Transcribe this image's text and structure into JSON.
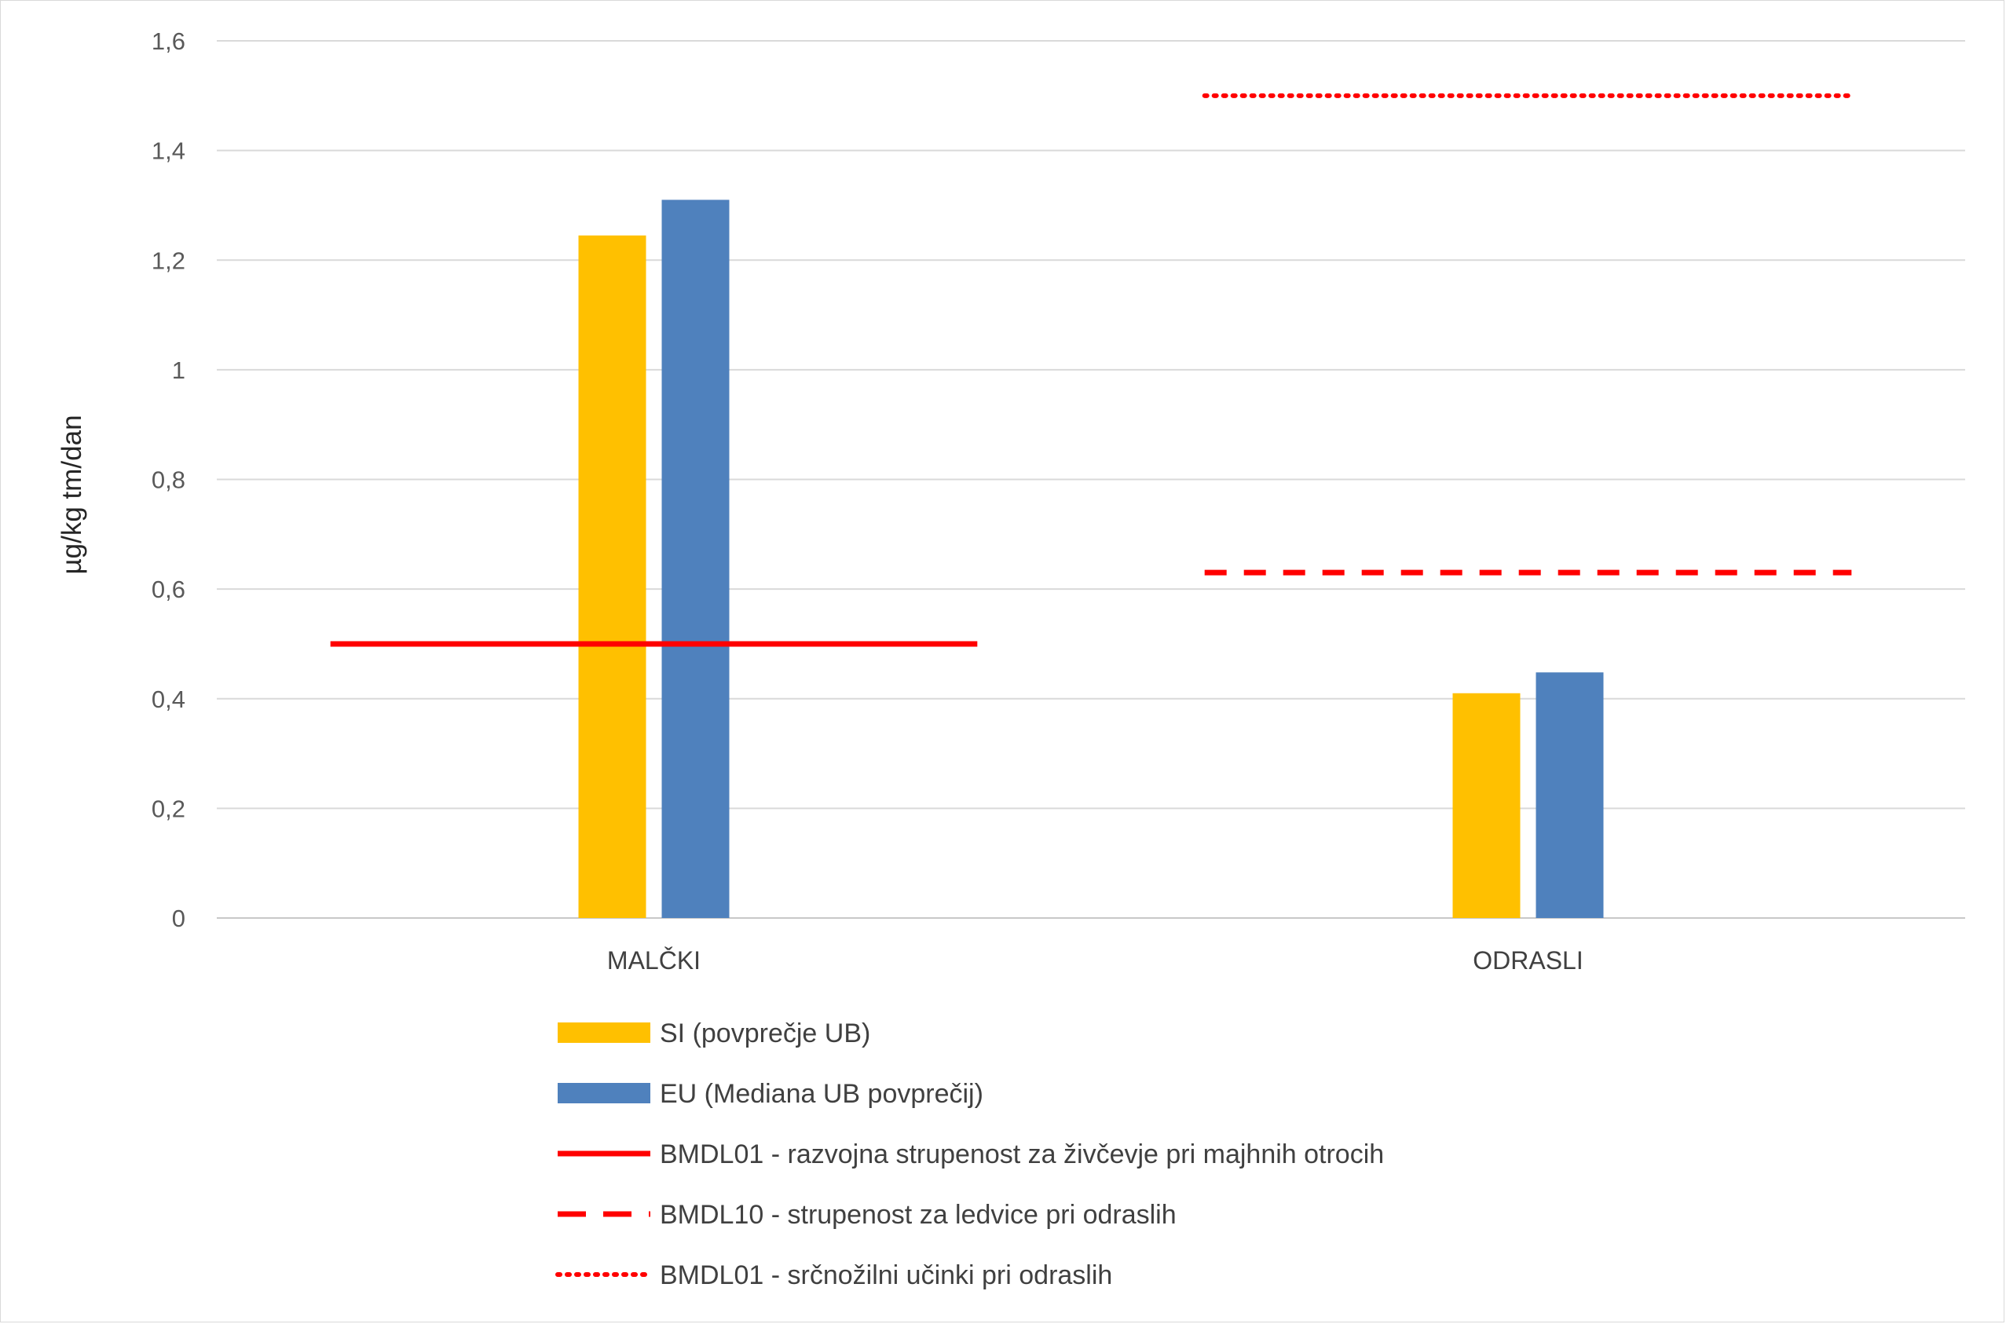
{
  "chart_data": {
    "type": "bar",
    "categories": [
      "MALČKI",
      "ODRASLI"
    ],
    "ylabel": "µg/kg tm/dan",
    "ylim": [
      0,
      1.6
    ],
    "yticks": [
      {
        "value": 0,
        "label": "0"
      },
      {
        "value": 0.2,
        "label": "0,2"
      },
      {
        "value": 0.4,
        "label": "0,4"
      },
      {
        "value": 0.6,
        "label": "0,6"
      },
      {
        "value": 0.8,
        "label": "0,8"
      },
      {
        "value": 1.0,
        "label": "1"
      },
      {
        "value": 1.2,
        "label": "1,2"
      },
      {
        "value": 1.4,
        "label": "1,4"
      },
      {
        "value": 1.6,
        "label": "1,6"
      }
    ],
    "grid": true,
    "legend_position": "bottom",
    "series": [
      {
        "name": "SI (povprečje UB)",
        "values": [
          1.245,
          0.41
        ],
        "color": "#FFC000"
      },
      {
        "name": "EU (Mediana UB povprečij)",
        "values": [
          1.31,
          0.448
        ],
        "color": "#4F81BD"
      }
    ],
    "reference_lines": [
      {
        "name": "BMDL01 - razvojna strupenost za živčevje pri majhnih otrocih",
        "value": 0.5,
        "category": "MALČKI",
        "style": "solid",
        "color": "#FF0000"
      },
      {
        "name": "BMDL10 - strupenost za ledvice pri odraslih",
        "value": 0.63,
        "category": "ODRASLI",
        "style": "dashed",
        "color": "#FF0000"
      },
      {
        "name": "BMDL01 - srčnožilni učinki pri odraslih",
        "value": 1.5,
        "category": "ODRASLI",
        "style": "dotted",
        "color": "#FF0000"
      }
    ]
  }
}
